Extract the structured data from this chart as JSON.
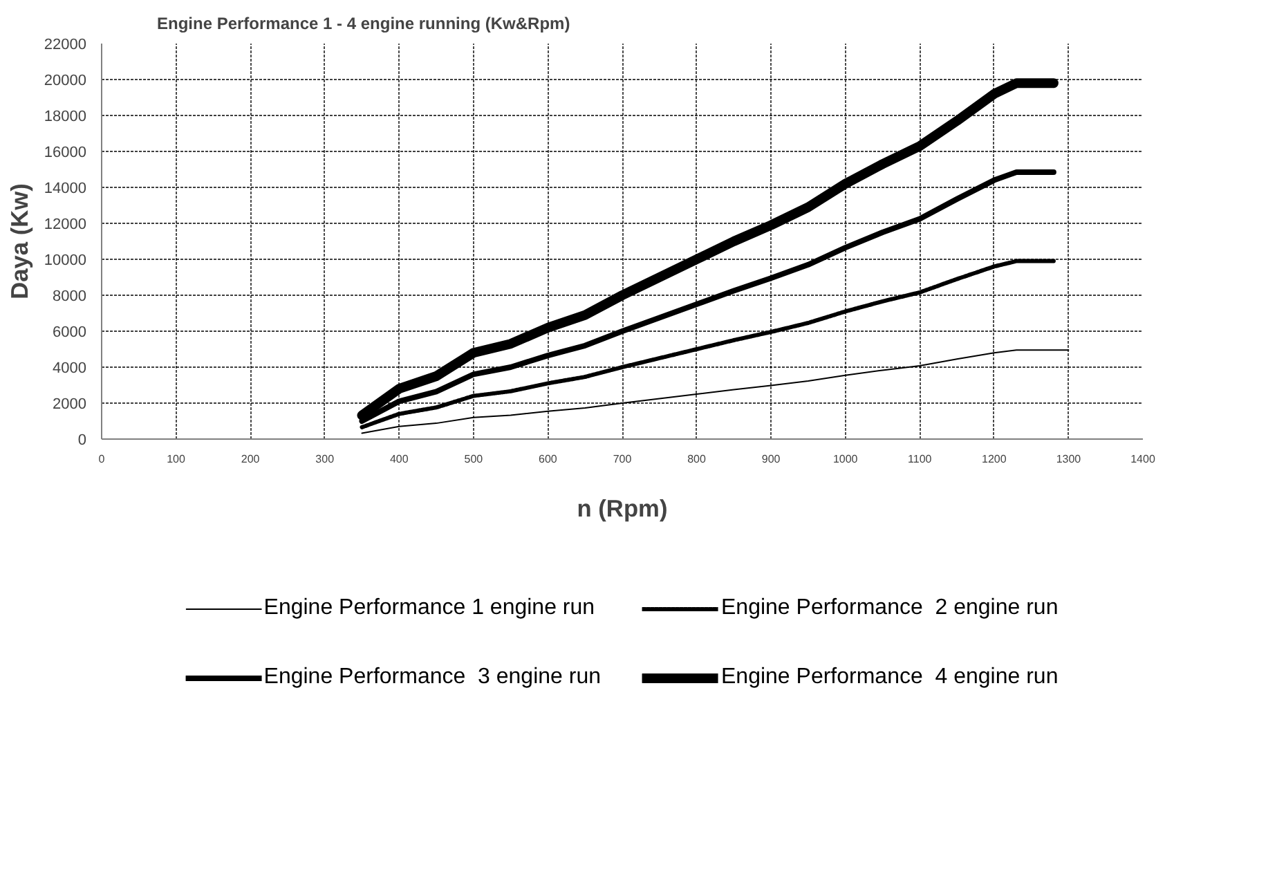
{
  "chart_data": {
    "type": "line",
    "title": "Engine Performance 1 - 4 engine running (Kw&Rpm)",
    "xlabel": "n (Rpm)",
    "ylabel": "Daya (Kw)",
    "xlim": [
      0,
      1400
    ],
    "xticks": [
      0,
      100,
      200,
      300,
      400,
      500,
      600,
      700,
      800,
      900,
      1000,
      1100,
      1200,
      1300,
      1400
    ],
    "ylim": [
      0,
      22000
    ],
    "yticks": [
      0,
      2000,
      4000,
      6000,
      8000,
      10000,
      12000,
      14000,
      16000,
      18000,
      20000,
      22000
    ],
    "grid": true,
    "legend": "bottom",
    "marker": "none",
    "series": [
      {
        "name": "Engine Performance 1 engine run",
        "color": "#000000",
        "line_style": "solid",
        "x": [
          350,
          400,
          450,
          500,
          550,
          600,
          650,
          700,
          750,
          800,
          850,
          900,
          950,
          1000,
          1050,
          1100,
          1150,
          1200,
          1230,
          1300
        ],
        "values": [
          330,
          700,
          880,
          1200,
          1330,
          1550,
          1730,
          2000,
          2250,
          2500,
          2750,
          2980,
          3230,
          3550,
          3830,
          4080,
          4450,
          4800,
          4950,
          4950
        ]
      },
      {
        "name": "Engine Performance  2 engine run",
        "color": "#000000",
        "line_style": "dotted",
        "x": [
          350,
          400,
          450,
          500,
          550,
          600,
          650,
          700,
          750,
          800,
          850,
          900,
          950,
          1000,
          1050,
          1100,
          1150,
          1200,
          1230,
          1280
        ],
        "values": [
          660,
          1400,
          1760,
          2400,
          2660,
          3100,
          3460,
          4000,
          4500,
          5000,
          5500,
          5960,
          6460,
          7100,
          7660,
          8160,
          8900,
          9600,
          9900,
          9900
        ]
      },
      {
        "name": "Engine Performance  3 engine run",
        "color": "#000000",
        "line_style": "solid",
        "x": [
          350,
          400,
          450,
          500,
          550,
          600,
          650,
          700,
          750,
          800,
          850,
          900,
          950,
          1000,
          1050,
          1100,
          1150,
          1200,
          1230,
          1280
        ],
        "values": [
          1000,
          2100,
          2640,
          3600,
          4000,
          4650,
          5200,
          6000,
          6750,
          7500,
          8250,
          8950,
          9700,
          10650,
          11500,
          12250,
          13350,
          14400,
          14850,
          14850
        ]
      },
      {
        "name": "Engine Performance  4 engine run",
        "color": "#000000",
        "line_style": "solid",
        "x": [
          350,
          400,
          450,
          500,
          550,
          600,
          650,
          700,
          750,
          800,
          850,
          900,
          950,
          1000,
          1050,
          1100,
          1150,
          1200,
          1230,
          1280
        ],
        "values": [
          1320,
          2800,
          3500,
          4800,
          5300,
          6200,
          6900,
          8000,
          9000,
          10000,
          11000,
          11900,
          12900,
          14200,
          15300,
          16300,
          17700,
          19200,
          19800,
          19800
        ]
      }
    ]
  }
}
